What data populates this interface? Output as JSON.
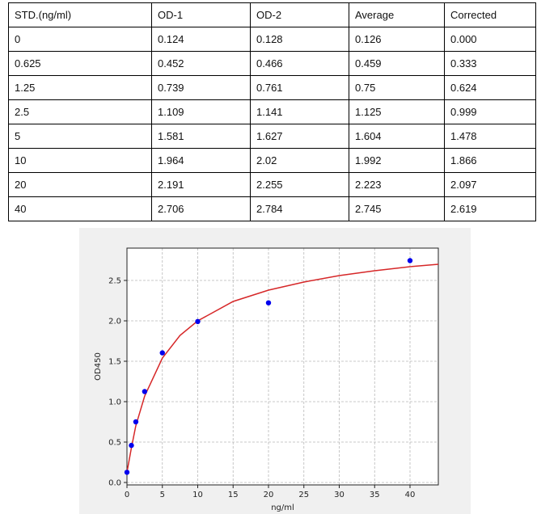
{
  "table": {
    "headers": [
      "STD.(ng/ml)",
      "OD-1",
      "OD-2",
      "Average",
      "Corrected"
    ],
    "rows": [
      [
        "0",
        "0.124",
        "0.128",
        "0.126",
        "0.000"
      ],
      [
        "0.625",
        "0.452",
        "0.466",
        "0.459",
        "0.333"
      ],
      [
        "1.25",
        "0.739",
        "0.761",
        "0.75",
        "0.624"
      ],
      [
        "2.5",
        "1.109",
        "1.141",
        "1.125",
        "0.999"
      ],
      [
        "5",
        "1.581",
        "1.627",
        "1.604",
        "1.478"
      ],
      [
        "10",
        "1.964",
        "2.02",
        "1.992",
        "1.866"
      ],
      [
        "20",
        "2.191",
        "2.255",
        "2.223",
        "2.097"
      ],
      [
        "40",
        "2.706",
        "2.784",
        "2.745",
        "2.619"
      ]
    ]
  },
  "chart_data": {
    "type": "scatter",
    "xlabel": "ng/ml",
    "ylabel": "OD450",
    "xlim": [
      0,
      44
    ],
    "ylim": [
      -0.03,
      2.9
    ],
    "xticks": [
      0,
      5,
      10,
      15,
      20,
      25,
      30,
      35,
      40
    ],
    "yticks": [
      0.0,
      0.5,
      1.0,
      1.5,
      2.0,
      2.5
    ],
    "ytick_labels": [
      "0.0",
      "0.5",
      "1.0",
      "1.5",
      "2.0",
      "2.5"
    ],
    "grid": true,
    "series": [
      {
        "kind": "points",
        "color": "#0000ee",
        "x": [
          0,
          0.625,
          1.25,
          2.5,
          5,
          10,
          20,
          40
        ],
        "y": [
          0.126,
          0.459,
          0.75,
          1.125,
          1.604,
          1.992,
          2.223,
          2.745
        ]
      },
      {
        "kind": "fitted-curve",
        "color": "#d62728",
        "x": [
          0,
          0.625,
          1.25,
          2.5,
          5,
          7.5,
          10,
          15,
          20,
          25,
          30,
          35,
          40,
          44
        ],
        "y": [
          0.126,
          0.43,
          0.7,
          1.07,
          1.54,
          1.82,
          2.0,
          2.24,
          2.38,
          2.48,
          2.56,
          2.62,
          2.67,
          2.7
        ]
      }
    ]
  }
}
